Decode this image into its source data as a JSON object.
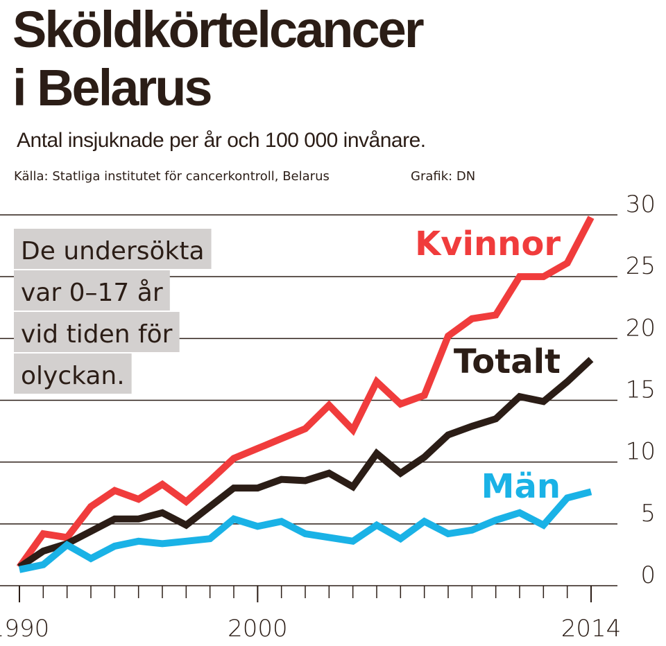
{
  "chart_data": {
    "type": "line",
    "title": [
      "Sköldkörtelcancer",
      "i Belarus"
    ],
    "subtitle": "Antal insjuknade per år och 100 000 invånare.",
    "source": "Källa: Statliga institutet för cancerkontroll, Belarus",
    "credit": "Grafik: DN",
    "annotation": [
      "De undersökta",
      "var 0–17 år",
      "vid tiden för",
      "olyckan."
    ],
    "x": [
      1990,
      1991,
      1992,
      1993,
      1994,
      1995,
      1996,
      1997,
      1998,
      1999,
      2000,
      2001,
      2002,
      2003,
      2004,
      2005,
      2006,
      2007,
      2008,
      2009,
      2010,
      2011,
      2012,
      2013,
      2014
    ],
    "series": [
      {
        "name": "Kvinnor",
        "color": "#f03c3c",
        "values": [
          1.5,
          4.2,
          3.9,
          6.4,
          7.7,
          7.0,
          8.2,
          6.8,
          8.5,
          10.3,
          11.1,
          11.9,
          12.7,
          14.6,
          12.6,
          16.5,
          14.7,
          15.4,
          20.2,
          21.6,
          21.9,
          25.0,
          25.0,
          26.1,
          29.8
        ]
      },
      {
        "name": "Totalt",
        "color": "#2b1d16",
        "values": [
          1.5,
          2.8,
          3.4,
          4.4,
          5.4,
          5.4,
          5.9,
          4.9,
          6.4,
          7.9,
          7.9,
          8.6,
          8.5,
          9.1,
          8.0,
          10.7,
          9.1,
          10.4,
          12.2,
          12.9,
          13.5,
          15.3,
          14.9,
          16.5,
          18.3
        ]
      },
      {
        "name": "Män",
        "color": "#1ab2e6",
        "values": [
          1.3,
          1.7,
          3.3,
          2.2,
          3.2,
          3.6,
          3.4,
          3.6,
          3.8,
          5.4,
          4.8,
          5.2,
          4.2,
          3.9,
          3.6,
          4.9,
          3.8,
          5.2,
          4.2,
          4.5,
          5.3,
          5.9,
          4.9,
          7.1,
          7.6
        ]
      }
    ],
    "xlim": [
      1990,
      2014
    ],
    "xticks": [
      1990,
      2000,
      2014
    ],
    "ylim": [
      0,
      30
    ],
    "yticks": [
      0,
      5,
      10,
      15,
      20,
      25,
      30
    ],
    "grid": true
  }
}
